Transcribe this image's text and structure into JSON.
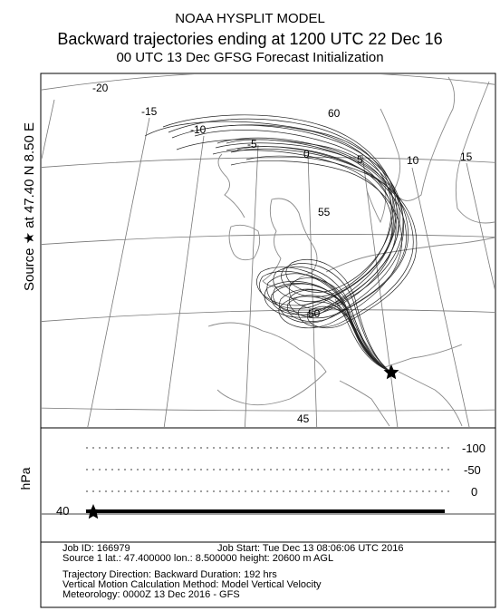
{
  "header": {
    "model": "NOAA HYSPLIT MODEL",
    "title": "Backward trajectories ending at 1200 UTC 22 Dec 16",
    "subtitle": "00 UTC 13 Dec   GFSG  Forecast Initialization"
  },
  "source_label": "Source ★ at   47.40 N    8.50 E",
  "map": {
    "longitude_labels": [
      "-20",
      "-15",
      "-10",
      "-5",
      "0",
      "5",
      "10",
      "15"
    ],
    "latitude_labels": [
      "60",
      "55",
      "50",
      "45"
    ],
    "source": {
      "lat": 47.4,
      "lon": 8.5,
      "marker": "star-icon"
    }
  },
  "vertical": {
    "unit_label": "hPa",
    "tick_labels": [
      "-100",
      "-50",
      "0"
    ],
    "left_value": "40"
  },
  "footer": {
    "job_id": "Job ID: 166979",
    "job_start": "Job Start: Tue Dec 13 08:06:06 UTC 2016",
    "source_line": "Source 1       lat.: 47.400000    lon.: 8.500000     height: 20600 m AGL",
    "direction": "Trajectory Direction: Backward       Duration: 192 hrs",
    "vertical_motion": "Vertical Motion Calculation Method:       Model Vertical Velocity",
    "meteorology": "Meteorology: 0000Z 13 Dec 2016 - GFS"
  },
  "colors": {
    "line": "#000000",
    "background": "#ffffff",
    "coast": "#8a8a8a",
    "grid": "#777777"
  }
}
